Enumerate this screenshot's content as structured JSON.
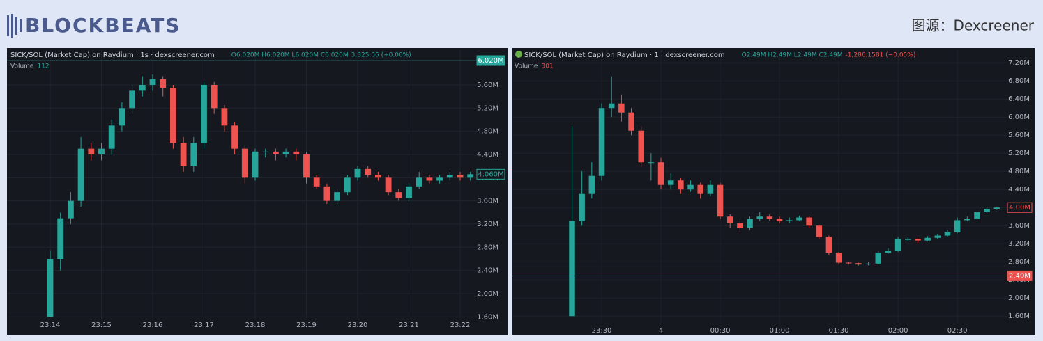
{
  "header": {
    "logo": "BLOCKBEATS",
    "source": "图源：Dexcreener"
  },
  "chart_data": [
    {
      "type": "candlestick",
      "title": "SICK/SOL (Market Cap) on Raydium · 1s · dexscreener.com",
      "ohlc": "O6.020M H6.020M L6.020M C6.020M",
      "change": "3,325.06 (+0.06%)",
      "volume_label": "Volume",
      "volume": 112,
      "up_color": "#26a69a",
      "down_color": "#ef5350",
      "grid": true,
      "ylim": [
        1.58,
        6.2
      ],
      "yticks": [
        {
          "value": 1.6,
          "label": "1.60M"
        },
        {
          "value": 2.0,
          "label": "2.00M"
        },
        {
          "value": 2.4,
          "label": "2.40M"
        },
        {
          "value": 2.8,
          "label": "2.80M"
        },
        {
          "value": 3.2,
          "label": "3.20M"
        },
        {
          "value": 3.6,
          "label": "3.60M"
        },
        {
          "value": 4.0,
          "label": "4.00M"
        },
        {
          "value": 4.4,
          "label": "4.40M"
        },
        {
          "value": 4.8,
          "label": "4.80M"
        },
        {
          "value": 5.2,
          "label": "5.20M"
        },
        {
          "value": 5.6,
          "label": "5.60M"
        }
      ],
      "price_tags": [
        {
          "value": 6.02,
          "label": "6.020M",
          "style": "filled",
          "color": "#26a69a"
        },
        {
          "value": 4.06,
          "label": "4.060M",
          "style": "outline",
          "color": "#26a69a"
        }
      ],
      "categories": [
        "23:14",
        null,
        null,
        null,
        null,
        "23:15",
        null,
        null,
        null,
        null,
        "23:16",
        null,
        null,
        null,
        null,
        "23:17",
        null,
        null,
        null,
        null,
        "23:18",
        null,
        null,
        null,
        null,
        "23:19",
        null,
        null,
        null,
        null,
        "23:20",
        null,
        null,
        null,
        null,
        "23:21",
        null,
        null,
        null,
        null,
        "23:22",
        null
      ],
      "open": [
        1.6,
        2.6,
        3.3,
        3.6,
        4.5,
        4.4,
        4.5,
        4.9,
        5.2,
        5.5,
        5.6,
        5.7,
        5.55,
        4.6,
        4.2,
        4.6,
        5.6,
        5.2,
        4.9,
        4.5,
        4.0,
        4.45,
        4.45,
        4.4,
        4.45,
        4.4,
        4.0,
        3.85,
        3.6,
        3.75,
        4.0,
        4.15,
        4.05,
        4.0,
        3.75,
        3.65,
        3.85,
        4.0,
        3.95,
        4.0,
        4.05,
        4.0
      ],
      "high": [
        2.75,
        3.4,
        3.75,
        4.7,
        4.6,
        4.6,
        5.0,
        5.3,
        5.6,
        5.75,
        5.78,
        5.75,
        5.6,
        4.7,
        4.7,
        5.65,
        5.65,
        5.25,
        4.95,
        4.55,
        4.5,
        4.5,
        4.5,
        4.5,
        4.5,
        4.45,
        4.05,
        3.9,
        3.8,
        4.05,
        4.2,
        4.2,
        4.1,
        4.05,
        3.8,
        3.9,
        4.1,
        4.05,
        4.05,
        4.1,
        4.1,
        4.1
      ],
      "low": [
        1.6,
        2.4,
        3.2,
        3.5,
        4.3,
        4.3,
        4.4,
        4.8,
        5.1,
        5.4,
        5.5,
        5.4,
        4.5,
        4.1,
        4.1,
        4.5,
        5.1,
        4.8,
        4.4,
        3.9,
        3.95,
        4.35,
        4.3,
        4.35,
        4.3,
        3.9,
        3.8,
        3.55,
        3.55,
        3.7,
        3.95,
        4.0,
        3.95,
        3.7,
        3.6,
        3.6,
        3.8,
        3.9,
        3.9,
        3.95,
        3.95,
        3.95
      ],
      "close": [
        2.6,
        3.3,
        3.6,
        4.5,
        4.4,
        4.5,
        4.9,
        5.2,
        5.5,
        5.6,
        5.7,
        5.55,
        4.6,
        4.2,
        4.6,
        5.6,
        5.2,
        4.9,
        4.5,
        4.0,
        4.45,
        4.45,
        4.4,
        4.45,
        4.4,
        4.0,
        3.85,
        3.6,
        3.75,
        4.0,
        4.15,
        4.05,
        4.0,
        3.75,
        3.65,
        3.85,
        4.0,
        3.95,
        4.0,
        4.05,
        4.0,
        4.06
      ]
    },
    {
      "type": "candlestick",
      "title": "SICK/SOL (Market Cap) on Raydium · 1 · dexscreener.com",
      "ohlc": "O2.49M H2.49M L2.49M C2.49M",
      "change": "-1,286.1581 (−0.05%)",
      "volume_label": "Volume",
      "volume": 301,
      "up_color": "#26a69a",
      "down_color": "#ef5350",
      "grid": true,
      "ylim": [
        1.45,
        7.48
      ],
      "yticks": [
        {
          "value": 1.6,
          "label": "1.60M"
        },
        {
          "value": 2.0,
          "label": "2.00M"
        },
        {
          "value": 2.4,
          "label": "2.40M"
        },
        {
          "value": 2.8,
          "label": "2.80M"
        },
        {
          "value": 3.2,
          "label": "3.20M"
        },
        {
          "value": 3.6,
          "label": "3.60M"
        },
        {
          "value": 4.0,
          "label": "4.00M"
        },
        {
          "value": 4.4,
          "label": "4.40M"
        },
        {
          "value": 4.8,
          "label": "4.80M"
        },
        {
          "value": 5.2,
          "label": "5.20M"
        },
        {
          "value": 5.6,
          "label": "5.60M"
        },
        {
          "value": 6.0,
          "label": "6.00M"
        },
        {
          "value": 6.4,
          "label": "6.40M"
        },
        {
          "value": 6.8,
          "label": "6.80M"
        },
        {
          "value": 7.2,
          "label": "7.20M"
        }
      ],
      "price_tags": [
        {
          "value": 4.0,
          "label": "4.00M",
          "style": "outline",
          "color": "#ef5350"
        },
        {
          "value": 2.49,
          "label": "2.49M",
          "style": "filled",
          "color": "#ef5350"
        }
      ],
      "categories": [
        null,
        null,
        null,
        "23:30",
        null,
        null,
        null,
        null,
        null,
        "4",
        null,
        null,
        null,
        null,
        null,
        "00:30",
        null,
        null,
        null,
        null,
        null,
        "01:00",
        null,
        null,
        null,
        null,
        null,
        "01:30",
        null,
        null,
        null,
        null,
        null,
        "02:00",
        null,
        null,
        null,
        null,
        null,
        "02:30",
        null,
        null,
        null,
        null
      ],
      "open": [
        1.6,
        3.7,
        4.3,
        4.7,
        6.2,
        6.3,
        6.1,
        5.7,
        5.0,
        5.0,
        4.5,
        4.6,
        4.4,
        4.5,
        4.3,
        4.5,
        3.8,
        3.65,
        3.55,
        3.75,
        3.8,
        3.75,
        3.7,
        3.72,
        3.78,
        3.6,
        3.35,
        3.0,
        2.78,
        2.77,
        2.74,
        2.76,
        3.0,
        3.05,
        3.3,
        3.3,
        3.27,
        3.33,
        3.38,
        3.45,
        3.72,
        3.75,
        3.9,
        3.97
      ],
      "high": [
        5.8,
        4.8,
        5.0,
        6.3,
        6.9,
        6.5,
        6.2,
        5.8,
        5.2,
        5.1,
        4.75,
        4.65,
        4.6,
        4.55,
        4.6,
        4.55,
        3.85,
        3.7,
        3.8,
        3.9,
        3.85,
        3.8,
        3.78,
        3.82,
        3.8,
        3.62,
        3.38,
        3.02,
        2.8,
        2.78,
        2.8,
        3.05,
        3.1,
        3.35,
        3.34,
        3.32,
        3.37,
        3.42,
        3.5,
        3.78,
        3.8,
        3.94,
        4.0,
        4.02
      ],
      "low": [
        1.6,
        3.6,
        4.2,
        4.6,
        6.0,
        5.9,
        5.6,
        4.9,
        4.6,
        4.4,
        4.4,
        4.3,
        4.35,
        4.2,
        4.25,
        3.75,
        3.55,
        3.45,
        3.5,
        3.7,
        3.7,
        3.65,
        3.66,
        3.7,
        3.55,
        3.3,
        2.95,
        2.74,
        2.74,
        2.72,
        2.72,
        2.74,
        2.98,
        3.02,
        3.25,
        3.22,
        3.25,
        3.3,
        3.36,
        3.43,
        3.7,
        3.73,
        3.88,
        3.95
      ],
      "close": [
        3.7,
        4.3,
        4.7,
        6.2,
        6.3,
        6.1,
        5.7,
        5.0,
        5.0,
        4.5,
        4.6,
        4.4,
        4.5,
        4.3,
        4.5,
        3.8,
        3.65,
        3.55,
        3.75,
        3.8,
        3.75,
        3.7,
        3.72,
        3.78,
        3.6,
        3.35,
        3.0,
        2.78,
        2.77,
        2.74,
        2.76,
        3.0,
        3.05,
        3.3,
        3.3,
        3.27,
        3.33,
        3.38,
        3.45,
        3.72,
        3.75,
        3.9,
        3.97,
        4.0
      ]
    }
  ]
}
